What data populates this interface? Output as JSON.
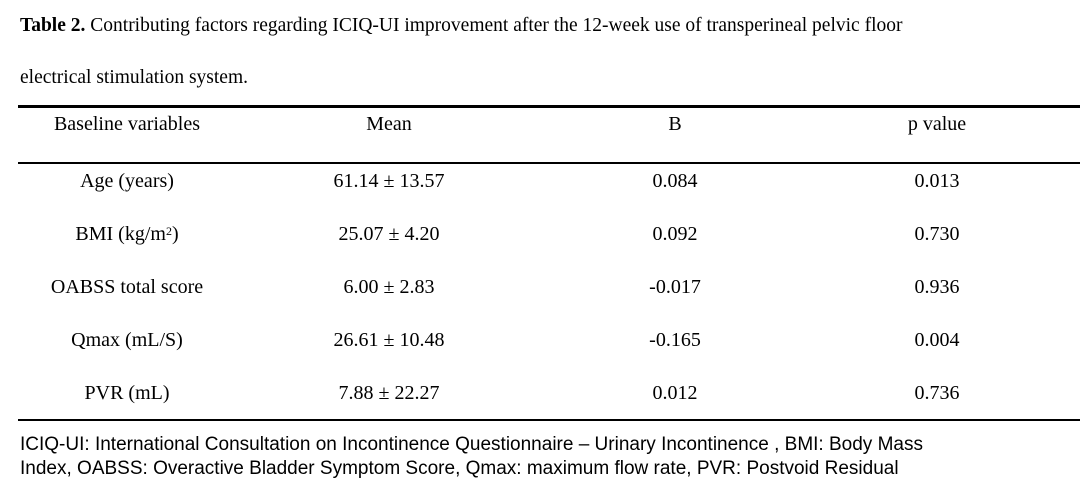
{
  "caption": {
    "label": "Table 2.",
    "line1": "Contributing factors regarding ICIQ-UI improvement after the 12-week use of transperineal pelvic floor",
    "line2": "electrical stimulation system."
  },
  "table": {
    "headers": [
      "Baseline variables",
      "Mean",
      "B",
      "p value"
    ],
    "rows": [
      {
        "variable": "Age (years)",
        "mean": "61.14 ± 13.57",
        "b": "0.084",
        "p": "0.013"
      },
      {
        "variable_pre": "BMI (kg/m",
        "variable_sup": "2",
        "variable_post": ")",
        "mean": "25.07 ± 4.20",
        "b": "0.092",
        "p": "0.730"
      },
      {
        "variable": "OABSS total score",
        "mean": "6.00 ± 2.83",
        "b": "-0.017",
        "p": "0.936"
      },
      {
        "variable": "Qmax (mL/S)",
        "mean": "26.61 ± 10.48",
        "b": "-0.165",
        "p": "0.004"
      },
      {
        "variable": "PVR (mL)",
        "mean": "7.88 ± 22.27",
        "b": "0.012",
        "p": "0.736"
      }
    ]
  },
  "footnote": {
    "line1": "ICIQ-UI: International Consultation on Incontinence Questionnaire  – Urinary Incontinence , BMI: Body Mass",
    "line2": "Index, OABSS: Overactive Bladder Symptom Score, Qmax: maximum flow rate, PVR: Postvoid Residual"
  }
}
